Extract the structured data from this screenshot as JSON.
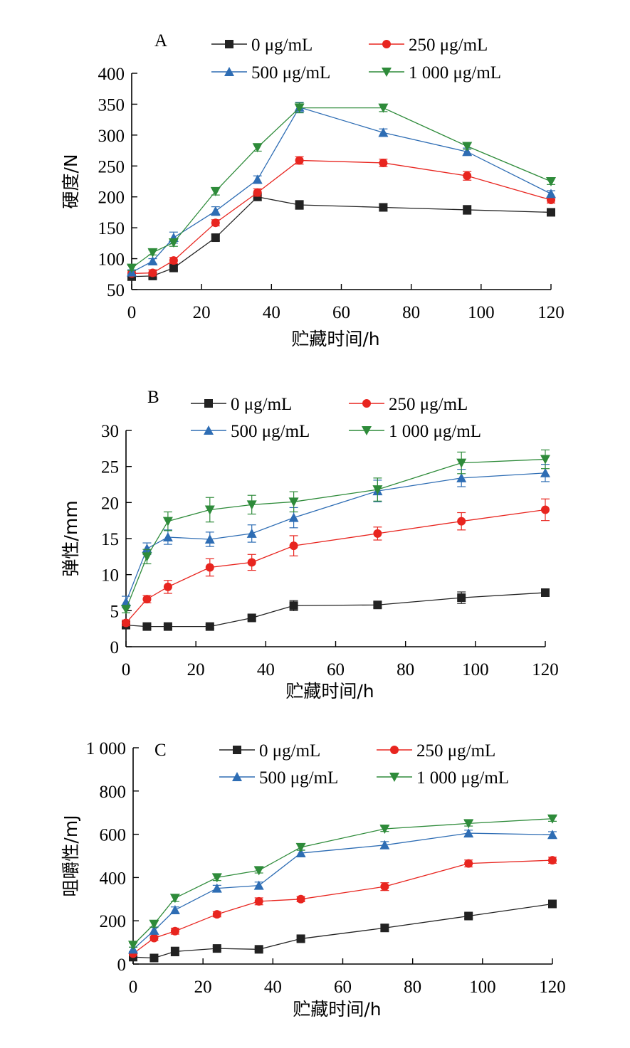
{
  "chart_data": [
    {
      "type": "line",
      "panel": "A",
      "xlabel": "贮藏时间/h",
      "ylabel": "硬度/N",
      "xlim": [
        0,
        120
      ],
      "ylim": [
        50,
        400
      ],
      "xticks": [
        0,
        20,
        40,
        60,
        80,
        100,
        120
      ],
      "yticks": [
        50,
        100,
        150,
        200,
        250,
        300,
        350,
        400
      ],
      "xtick_labels": [
        "0",
        "20",
        "40",
        "60",
        "80",
        "100",
        "120"
      ],
      "ytick_labels": [
        "50",
        "100",
        "150",
        "200",
        "250",
        "300",
        "350",
        "400"
      ],
      "x": [
        0,
        6,
        12,
        24,
        36,
        48,
        72,
        96,
        120
      ],
      "series": [
        {
          "name": "0 μg/mL",
          "color": "#222222",
          "marker": "square",
          "values": [
            71,
            72,
            85,
            134,
            200,
            187,
            183,
            179,
            175
          ],
          "errors": [
            4,
            4,
            4,
            5,
            6,
            7,
            6,
            7,
            5
          ]
        },
        {
          "name": "250 μg/mL",
          "color": "#e8251f",
          "marker": "circle",
          "values": [
            76,
            77,
            97,
            158,
            207,
            259,
            255,
            234,
            195
          ],
          "errors": [
            4,
            5,
            5,
            5,
            6,
            6,
            6,
            7,
            5
          ]
        },
        {
          "name": "500 μg/mL",
          "color": "#2e6db4",
          "marker": "triangle-up",
          "values": [
            78,
            96,
            134,
            177,
            228,
            345,
            304,
            273,
            205
          ],
          "errors": [
            4,
            4,
            9,
            7,
            6,
            8,
            6,
            6,
            5
          ]
        },
        {
          "name": "1 000 μg/mL",
          "color": "#2e8b3a",
          "marker": "triangle-down",
          "values": [
            85,
            110,
            126,
            209,
            280,
            344,
            344,
            282,
            225
          ],
          "errors": [
            4,
            4,
            6,
            6,
            6,
            8,
            6,
            5,
            5
          ]
        }
      ]
    },
    {
      "type": "line",
      "panel": "B",
      "xlabel": "贮藏时间/h",
      "ylabel": "弹性/mm",
      "xlim": [
        0,
        120
      ],
      "ylim": [
        0,
        30
      ],
      "xticks": [
        0,
        20,
        40,
        60,
        80,
        100,
        120
      ],
      "yticks": [
        0,
        5,
        10,
        15,
        20,
        25,
        30
      ],
      "xtick_labels": [
        "0",
        "20",
        "40",
        "60",
        "80",
        "100",
        "120"
      ],
      "ytick_labels": [
        "0",
        "5",
        "10",
        "15",
        "20",
        "25",
        "30"
      ],
      "x": [
        0,
        6,
        12,
        24,
        36,
        48,
        72,
        96,
        120
      ],
      "series": [
        {
          "name": "0 μg/mL",
          "color": "#222222",
          "marker": "square",
          "values": [
            3.0,
            2.8,
            2.8,
            2.8,
            4.0,
            5.7,
            5.8,
            6.8,
            7.5
          ],
          "errors": [
            0.3,
            0.3,
            0.3,
            0.3,
            0.4,
            0.7,
            0.4,
            0.8,
            0.4
          ]
        },
        {
          "name": "250 μg/mL",
          "color": "#e8251f",
          "marker": "circle",
          "values": [
            3.3,
            6.6,
            8.3,
            11.0,
            11.7,
            14.0,
            15.7,
            17.4,
            19.0
          ],
          "errors": [
            0.4,
            0.5,
            0.9,
            1.2,
            1.1,
            1.4,
            0.9,
            1.2,
            1.5
          ]
        },
        {
          "name": "500 μg/mL",
          "color": "#2e6db4",
          "marker": "triangle-up",
          "values": [
            6.2,
            13.6,
            15.2,
            14.9,
            15.7,
            17.9,
            21.6,
            23.4,
            24.1
          ],
          "errors": [
            0.8,
            0.8,
            1.0,
            1.0,
            1.2,
            1.4,
            1.5,
            1.2,
            1.2
          ]
        },
        {
          "name": "1 000 μg/mL",
          "color": "#2e8b3a",
          "marker": "triangle-down",
          "values": [
            5.2,
            12.5,
            17.4,
            19.0,
            19.7,
            20.1,
            21.8,
            25.5,
            26.0
          ],
          "errors": [
            0.5,
            1.0,
            1.3,
            1.7,
            1.3,
            1.4,
            1.6,
            1.5,
            1.3
          ]
        }
      ]
    },
    {
      "type": "line",
      "panel": "C",
      "xlabel": "贮藏时间/h",
      "ylabel": "咀嚼性/mJ",
      "xlim": [
        0,
        120
      ],
      "ylim": [
        0,
        1000
      ],
      "xticks": [
        0,
        20,
        40,
        60,
        80,
        100,
        120
      ],
      "yticks": [
        0,
        200,
        400,
        600,
        800,
        1000
      ],
      "xtick_labels": [
        "0",
        "20",
        "40",
        "60",
        "80",
        "100",
        "120"
      ],
      "ytick_labels": [
        "0",
        "200",
        "400",
        "600",
        "800",
        "1 000"
      ],
      "x": [
        0,
        6,
        12,
        24,
        36,
        48,
        72,
        96,
        120
      ],
      "series": [
        {
          "name": "0 μg/mL",
          "color": "#222222",
          "marker": "square",
          "values": [
            32,
            28,
            58,
            72,
            68,
            117,
            167,
            222,
            278
          ],
          "errors": [
            8,
            6,
            20,
            10,
            8,
            12,
            15,
            12,
            12
          ]
        },
        {
          "name": "250 μg/mL",
          "color": "#e8251f",
          "marker": "circle",
          "values": [
            48,
            120,
            152,
            230,
            290,
            300,
            358,
            465,
            480
          ],
          "errors": [
            8,
            10,
            14,
            12,
            16,
            12,
            18,
            16,
            14
          ]
        },
        {
          "name": "500 μg/mL",
          "color": "#2e6db4",
          "marker": "triangle-up",
          "values": [
            68,
            155,
            250,
            350,
            363,
            513,
            550,
            605,
            598
          ],
          "errors": [
            10,
            14,
            14,
            14,
            16,
            14,
            16,
            14,
            14
          ]
        },
        {
          "name": "1 000 μg/mL",
          "color": "#2e8b3a",
          "marker": "triangle-down",
          "values": [
            88,
            185,
            305,
            400,
            433,
            540,
            625,
            650,
            672
          ],
          "errors": [
            10,
            14,
            16,
            14,
            12,
            14,
            12,
            12,
            12
          ]
        }
      ]
    }
  ]
}
